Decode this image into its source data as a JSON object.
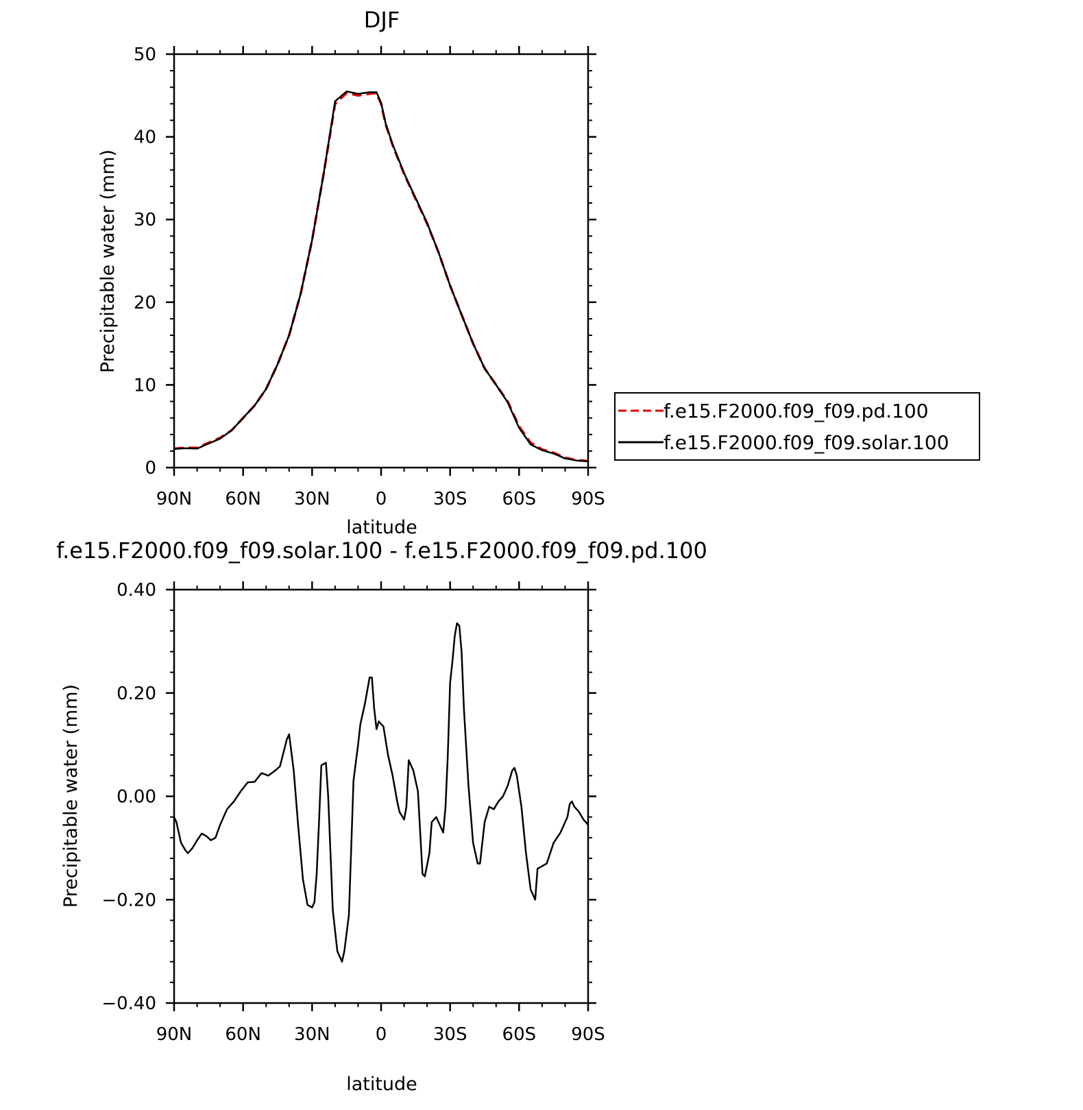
{
  "chart_data": [
    {
      "type": "line",
      "title": "DJF",
      "xlabel": "latitude",
      "ylabel": "Precipitable water (mm)",
      "xlim": [
        90,
        -90
      ],
      "ylim": [
        0,
        50
      ],
      "xticks": [
        90,
        60,
        30,
        0,
        -30,
        -60,
        -90
      ],
      "xtick_labels": [
        "90N",
        "60N",
        "30N",
        "0",
        "30S",
        "60S",
        "90S"
      ],
      "yticks": [
        0,
        10,
        20,
        30,
        40,
        50
      ],
      "ytick_labels": [
        "0",
        "10",
        "20",
        "30",
        "40",
        "50"
      ],
      "grid": false,
      "legend": {
        "placement": "outside-right",
        "entries": [
          "f.e15.F2000.f09_f09.pd.100",
          "f.e15.F2000.f09_f09.solar.100"
        ]
      },
      "series": [
        {
          "name": "f.e15.F2000.f09_f09.pd.100",
          "color": "#e00000",
          "dash": "dashed",
          "x": [
            90,
            85,
            80,
            75,
            70,
            65,
            60,
            55,
            50,
            45,
            40,
            35,
            30,
            25,
            20,
            15,
            10,
            5,
            2,
            0,
            -2,
            -5,
            -10,
            -15,
            -20,
            -25,
            -30,
            -35,
            -40,
            -45,
            -50,
            -55,
            -60,
            -65,
            -70,
            -75,
            -80,
            -85,
            -90
          ],
          "y": [
            2.3,
            2.4,
            2.4,
            3.0,
            3.6,
            4.5,
            6.0,
            7.5,
            9.5,
            12.5,
            16.0,
            21.0,
            27.5,
            35.5,
            44.0,
            45.3,
            45.0,
            45.2,
            45.3,
            44.0,
            41.5,
            39.0,
            35.5,
            32.5,
            29.5,
            26.0,
            22.0,
            18.5,
            15.0,
            12.0,
            10.0,
            8.0,
            5.0,
            3.0,
            2.2,
            1.8,
            1.2,
            0.9,
            0.8
          ]
        },
        {
          "name": "f.e15.F2000.f09_f09.solar.100",
          "color": "#000000",
          "dash": "solid",
          "x": [
            90,
            85,
            80,
            75,
            70,
            65,
            60,
            55,
            50,
            45,
            40,
            35,
            30,
            25,
            20,
            15,
            10,
            5,
            2,
            0,
            -2,
            -5,
            -10,
            -15,
            -20,
            -25,
            -30,
            -35,
            -40,
            -45,
            -50,
            -55,
            -60,
            -65,
            -70,
            -75,
            -80,
            -85,
            -90
          ],
          "y": [
            2.25,
            2.35,
            2.3,
            2.9,
            3.5,
            4.5,
            6.0,
            7.5,
            9.5,
            12.5,
            16.0,
            21.0,
            27.5,
            35.5,
            44.3,
            45.5,
            45.2,
            45.4,
            45.4,
            44.1,
            41.6,
            39.1,
            35.6,
            32.6,
            29.6,
            26.0,
            22.0,
            18.5,
            15.0,
            12.0,
            10.0,
            7.9,
            4.8,
            2.8,
            2.1,
            1.7,
            1.1,
            0.85,
            0.75
          ]
        }
      ]
    },
    {
      "type": "line",
      "title": "f.e15.F2000.f09_f09.solar.100 - f.e15.F2000.f09_f09.pd.100",
      "xlabel": "latitude",
      "ylabel": "Precipitable water (mm)",
      "xlim": [
        90,
        -90
      ],
      "ylim": [
        -0.4,
        0.4
      ],
      "xticks": [
        90,
        60,
        30,
        0,
        -30,
        -60,
        -90
      ],
      "xtick_labels": [
        "90N",
        "60N",
        "30N",
        "0",
        "30S",
        "60S",
        "90S"
      ],
      "yticks": [
        -0.4,
        -0.2,
        0.0,
        0.2,
        0.4
      ],
      "ytick_labels": [
        "−0.40",
        "−0.20",
        "0.00",
        "0.20",
        "0.40"
      ],
      "grid": false,
      "series": [
        {
          "color": "#000000",
          "dash": "solid",
          "x": [
            90,
            89,
            87,
            85,
            84,
            82,
            80,
            78,
            76,
            74,
            72,
            70,
            67,
            64,
            61,
            58,
            55,
            52,
            49,
            46,
            44,
            41,
            40,
            38,
            36,
            34,
            32,
            30,
            29,
            28,
            27,
            26,
            24,
            23,
            21,
            19,
            17,
            16,
            14,
            13,
            12,
            10,
            9,
            7,
            5,
            4,
            3,
            2,
            1,
            -1,
            -3,
            -5,
            -7,
            -8,
            -10,
            -11,
            -12,
            -14,
            -16,
            -18,
            -19,
            -21,
            -22,
            -24,
            -26,
            -27,
            -28,
            -29,
            -30,
            -31,
            -32,
            -33,
            -34,
            -35,
            -36,
            -38,
            -40,
            -42,
            -43,
            -45,
            -47,
            -49,
            -51,
            -53,
            -55,
            -57,
            -58,
            -59,
            -61,
            -63,
            -65,
            -67,
            -68,
            -70,
            -72,
            -75,
            -78,
            -81,
            -82,
            -83,
            -84,
            -86,
            -88,
            -90
          ],
          "y": [
            -0.04,
            -0.05,
            -0.09,
            -0.105,
            -0.11,
            -0.1,
            -0.085,
            -0.072,
            -0.077,
            -0.085,
            -0.08,
            -0.055,
            -0.025,
            -0.01,
            0.01,
            0.027,
            0.028,
            0.045,
            0.04,
            0.05,
            0.058,
            0.11,
            0.12,
            0.05,
            -0.06,
            -0.16,
            -0.21,
            -0.215,
            -0.205,
            -0.15,
            -0.05,
            0.06,
            0.065,
            0.0,
            -0.22,
            -0.3,
            -0.32,
            -0.3,
            -0.23,
            -0.1,
            0.03,
            0.1,
            0.14,
            0.18,
            0.23,
            0.23,
            0.17,
            0.13,
            0.145,
            0.135,
            0.08,
            0.04,
            -0.01,
            -0.03,
            -0.045,
            -0.02,
            0.07,
            0.05,
            0.01,
            -0.15,
            -0.155,
            -0.11,
            -0.05,
            -0.04,
            -0.06,
            -0.07,
            -0.02,
            0.08,
            0.22,
            0.26,
            0.31,
            0.335,
            0.33,
            0.28,
            0.17,
            0.02,
            -0.09,
            -0.13,
            -0.13,
            -0.05,
            -0.02,
            -0.025,
            -0.01,
            0.0,
            0.02,
            0.05,
            0.055,
            0.04,
            -0.02,
            -0.11,
            -0.18,
            -0.2,
            -0.14,
            -0.135,
            -0.13,
            -0.09,
            -0.07,
            -0.04,
            -0.015,
            -0.01,
            -0.02,
            -0.03,
            -0.045,
            -0.055
          ]
        }
      ]
    }
  ]
}
